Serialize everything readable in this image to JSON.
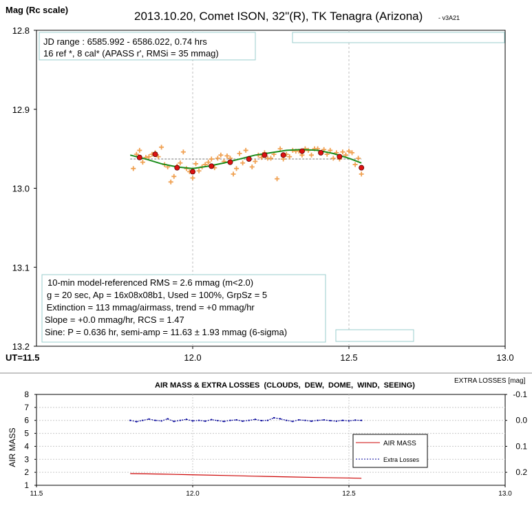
{
  "chart_data": [
    {
      "type": "scatter",
      "title": "2013.10.20, Comet ISON, 32\"(R), TK Tenagra (Arizona)",
      "version": "- v3A21",
      "ylabel": "Mag (Rc scale)",
      "x_start_label": "UT=11.5",
      "xlim": [
        11.5,
        13.0
      ],
      "ylim": [
        12.8,
        13.2
      ],
      "y_inverted": true,
      "x_ticks": [
        "12.0",
        "12.5",
        "13.0"
      ],
      "y_ticks": [
        "12.8",
        "12.9",
        "13.0",
        "13.1",
        "13.2"
      ],
      "grid": "vertical dashed at 12.0 and 12.5",
      "info_top": [
        "JD range : 6585.992 - 6586.022, 0.74 hrs",
        "16  ref *, 8 cal* (APASS r', RMSi = 35 mmag)"
      ],
      "info_bottom": [
        "10-min model-referenced RMS = 2.6 mmag (m<2.0)",
        "g = 20 sec, Ap = 16x08x08b1, Used = 100%, GrpSz = 5",
        " Extinction = 113 mmag/airmass, trend = +0 mmag/hr",
        "Slope = +0.0 mmag/hr, RCS = 1.47",
        "Sine: P = 0.636 hr, semi-amp = 11.63 ± 1.93 mmag (6-sigma)"
      ],
      "series": [
        {
          "marker": "plus",
          "color": "#f0a050",
          "x": [
            11.81,
            11.82,
            11.83,
            11.84,
            11.85,
            11.86,
            11.87,
            11.88,
            11.89,
            11.9,
            11.91,
            11.92,
            11.93,
            11.94,
            11.95,
            11.96,
            11.97,
            11.98,
            11.99,
            12.0,
            12.01,
            12.02,
            12.03,
            12.04,
            12.05,
            12.06,
            12.07,
            12.08,
            12.09,
            12.1,
            12.11,
            12.12,
            12.13,
            12.14,
            12.15,
            12.16,
            12.17,
            12.18,
            12.19,
            12.2,
            12.21,
            12.22,
            12.23,
            12.24,
            12.25,
            12.26,
            12.27,
            12.28,
            12.29,
            12.3,
            12.31,
            12.32,
            12.33,
            12.34,
            12.35,
            12.36,
            12.37,
            12.38,
            12.39,
            12.4,
            12.41,
            12.42,
            12.43,
            12.44,
            12.45,
            12.46,
            12.47,
            12.48,
            12.49,
            12.5,
            12.51,
            12.52,
            12.53,
            12.54
          ],
          "y": [
            12.975,
            12.957,
            12.952,
            12.967,
            12.961,
            12.96,
            12.957,
            12.955,
            12.96,
            12.948,
            12.97,
            12.973,
            12.992,
            12.985,
            12.972,
            12.968,
            12.954,
            12.975,
            12.979,
            12.987,
            12.969,
            12.978,
            12.973,
            12.97,
            12.967,
            12.963,
            12.974,
            12.962,
            12.958,
            12.966,
            12.959,
            12.962,
            12.982,
            12.975,
            12.956,
            12.968,
            12.952,
            12.962,
            12.973,
            12.966,
            12.958,
            12.961,
            12.955,
            12.962,
            12.962,
            12.957,
            12.988,
            12.95,
            12.963,
            12.957,
            12.96,
            12.952,
            12.953,
            12.953,
            12.958,
            12.95,
            12.952,
            12.958,
            12.95,
            12.95,
            12.955,
            12.951,
            12.957,
            12.952,
            12.962,
            12.955,
            12.963,
            12.954,
            12.958,
            12.953,
            12.955,
            12.97,
            12.962,
            12.982
          ]
        },
        {
          "marker": "circle",
          "color": "#dd1111",
          "x": [
            11.83,
            11.88,
            11.95,
            12.0,
            12.06,
            12.12,
            12.18,
            12.23,
            12.29,
            12.35,
            12.41,
            12.47,
            12.54
          ],
          "y": [
            12.961,
            12.957,
            12.974,
            12.979,
            12.972,
            12.967,
            12.963,
            12.958,
            12.958,
            12.953,
            12.955,
            12.96,
            12.974
          ]
        },
        {
          "marker": "line",
          "color": "#1a8c1a",
          "x": [
            11.8,
            11.85,
            11.9,
            11.95,
            12.0,
            12.05,
            12.1,
            12.15,
            12.2,
            12.25,
            12.3,
            12.35,
            12.4,
            12.45,
            12.5,
            12.54
          ],
          "y": [
            12.958,
            12.963,
            12.969,
            12.973,
            12.975,
            12.972,
            12.968,
            12.963,
            12.958,
            12.955,
            12.952,
            12.951,
            12.952,
            12.956,
            12.962,
            12.968
          ]
        },
        {
          "marker": "dashed",
          "color": "#777777",
          "x": [
            11.8,
            12.54
          ],
          "y": [
            12.963,
            12.963
          ]
        }
      ]
    },
    {
      "type": "line",
      "title": "AIR MASS & EXTRA LOSSES  (CLOUDS,  DEW,  DOME,  WIND,  SEEING)",
      "ylabel": "AIR MASS",
      "y2label": "EXTRA LOSSES [mag]",
      "xlim": [
        11.5,
        13.0
      ],
      "ylim": [
        1,
        8
      ],
      "y2lim": [
        0.25,
        -0.1
      ],
      "x_ticks": [
        "11.5",
        "12.0",
        "12.5",
        "13.0"
      ],
      "y_ticks": [
        "1",
        "2",
        "3",
        "4",
        "5",
        "6",
        "7",
        "8"
      ],
      "y2_ticks": [
        "-0.1",
        "0.0",
        "0.1",
        "0.2"
      ],
      "legend": "right",
      "series": [
        {
          "name": "AIR MASS",
          "color": "#cc0000",
          "x": [
            11.8,
            11.9,
            12.0,
            12.1,
            12.2,
            12.3,
            12.4,
            12.5,
            12.54
          ],
          "y": [
            1.9,
            1.86,
            1.81,
            1.76,
            1.7,
            1.65,
            1.6,
            1.56,
            1.54
          ]
        },
        {
          "name": "Extra Losses",
          "color": "#000099",
          "x": [
            11.8,
            11.82,
            11.84,
            11.86,
            11.88,
            11.9,
            11.92,
            11.94,
            11.96,
            11.98,
            12.0,
            12.02,
            12.04,
            12.06,
            12.08,
            12.1,
            12.12,
            12.14,
            12.16,
            12.18,
            12.2,
            12.22,
            12.24,
            12.26,
            12.28,
            12.3,
            12.32,
            12.34,
            12.36,
            12.38,
            12.4,
            12.42,
            12.44,
            12.46,
            12.48,
            12.5,
            12.52,
            12.54
          ],
          "y": [
            0.0,
            0.005,
            0.0,
            -0.005,
            0.0,
            0.002,
            -0.006,
            0.004,
            0.0,
            -0.004,
            0.002,
            0.0,
            0.003,
            -0.003,
            0.001,
            0.004,
            0.0,
            -0.002,
            0.003,
            0.0,
            -0.004,
            0.001,
            0.0,
            -0.01,
            -0.006,
            0.0,
            0.004,
            -0.002,
            0.0,
            0.003,
            0.0,
            -0.002,
            0.001,
            0.003,
            0.0,
            0.002,
            -0.001,
            0.0
          ]
        }
      ]
    }
  ]
}
